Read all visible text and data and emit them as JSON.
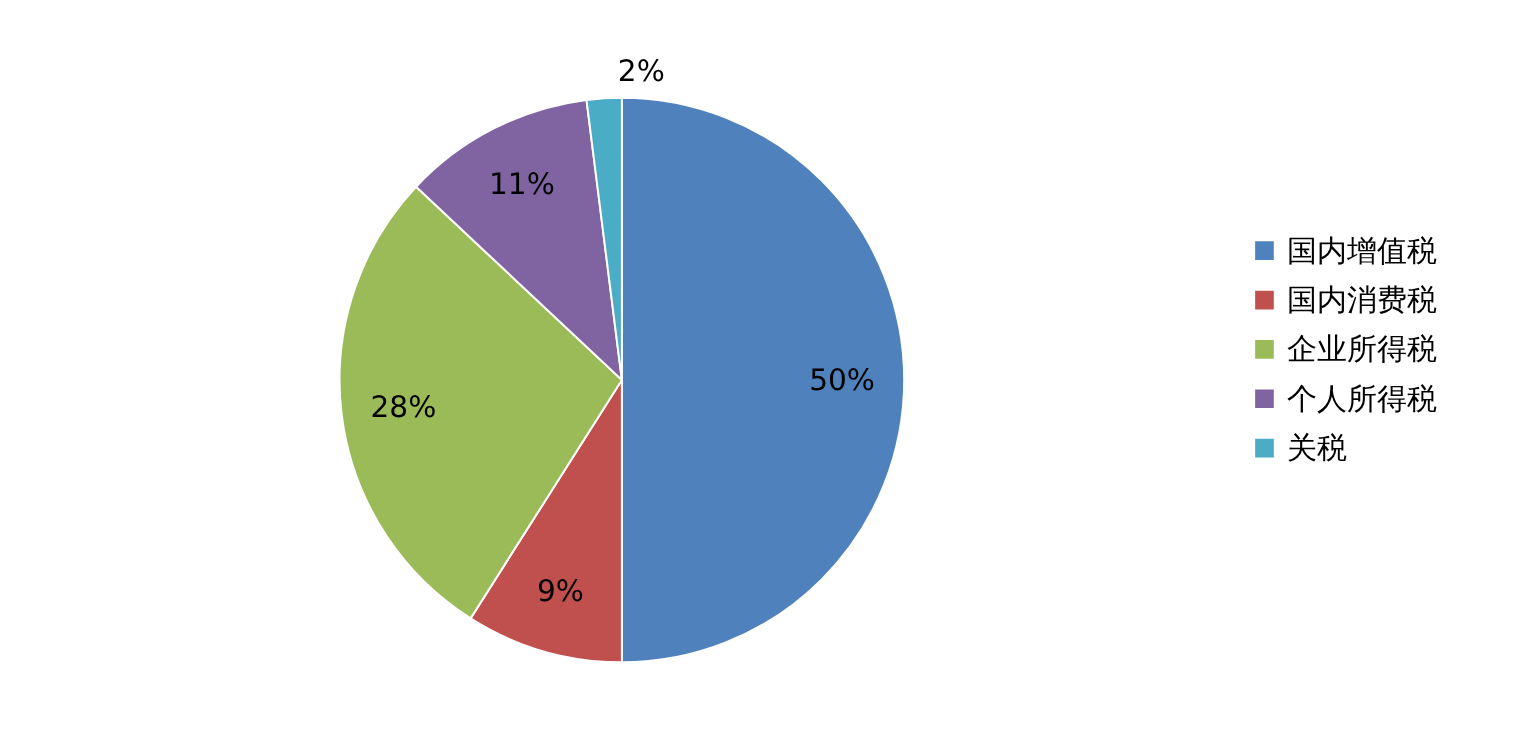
{
  "chart_data": {
    "type": "pie",
    "categories": [
      "国内增值税",
      "国内消费税",
      "企业所得税",
      "个人所得税",
      "关税"
    ],
    "values": [
      50,
      9,
      28,
      11,
      2
    ],
    "colors": [
      "#4f81bd",
      "#c0504d",
      "#9bbb59",
      "#8064a2",
      "#4bacc6"
    ],
    "value_labels": [
      "50%",
      "9%",
      "28%",
      "11%",
      "2%"
    ],
    "legend": "right"
  }
}
